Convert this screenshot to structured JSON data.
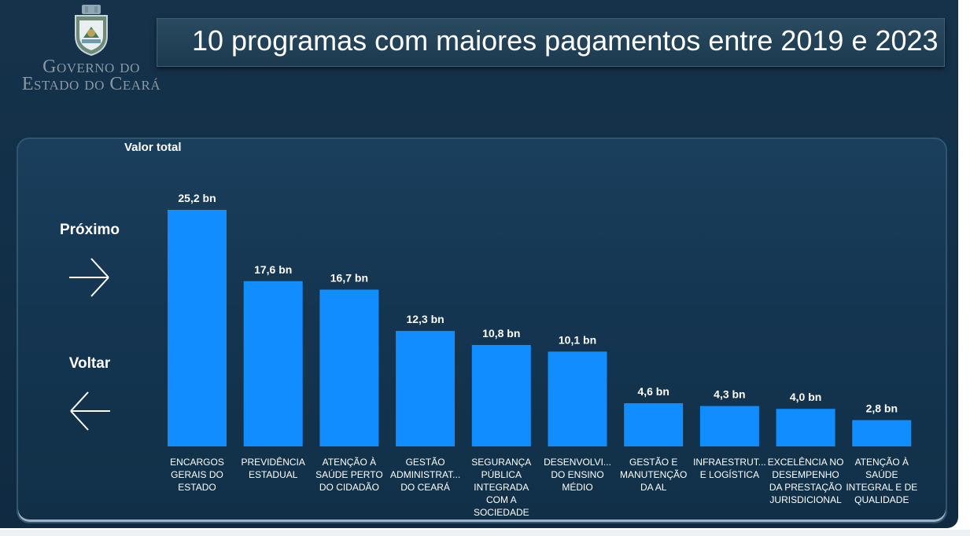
{
  "header": {
    "logo_line1": "Governo do",
    "logo_line2": "Estado do Ceará",
    "title": "10 programas com maiores pagamentos entre 2019 e 2023"
  },
  "navigation": {
    "next_label": "Próximo",
    "back_label": "Voltar"
  },
  "colors": {
    "bar": "#118dff",
    "background": "#133249",
    "text": "#ffffff"
  },
  "chart_data": {
    "type": "bar",
    "title": "",
    "ylabel": "Valor total",
    "xlabel": "",
    "unit": "bn",
    "categories": [
      [
        "ENCARGOS",
        "GERAIS DO",
        "ESTADO"
      ],
      [
        "PREVIDÊNCIA",
        "ESTADUAL"
      ],
      [
        "ATENÇÃO À",
        "SAÚDE PERTO",
        "DO CIDADÃO"
      ],
      [
        "GESTÃO",
        "ADMINISTRAT...",
        "DO CEARÁ"
      ],
      [
        "SEGURANÇA",
        "PÚBLICA",
        "INTEGRADA",
        "COM A",
        "SOCIEDADE"
      ],
      [
        "DESENVOLVI...",
        "DO ENSINO",
        "MÉDIO"
      ],
      [
        "GESTÃO E",
        "MANUTENÇÃO",
        "DA AL"
      ],
      [
        "INFRAESTRUT...",
        "E LOGÍSTICA"
      ],
      [
        "EXCELÊNCIA NO",
        "DESEMPENHO",
        "DA PRESTAÇÃO",
        "JURISDICIONAL"
      ],
      [
        "ATENÇÃO À",
        "SAÚDE",
        "INTEGRAL E DE",
        "QUALIDADE"
      ]
    ],
    "values": [
      25.2,
      17.6,
      16.7,
      12.3,
      10.8,
      10.1,
      4.6,
      4.3,
      4.0,
      2.8
    ],
    "value_labels": [
      "25,2 bn",
      "17,6 bn",
      "16,7 bn",
      "12,3 bn",
      "10,8 bn",
      "10,1 bn",
      "4,6 bn",
      "4,3 bn",
      "4,0 bn",
      "2,8 bn"
    ],
    "ylim": [
      0,
      25.2
    ],
    "grid": false,
    "legend": "none"
  }
}
